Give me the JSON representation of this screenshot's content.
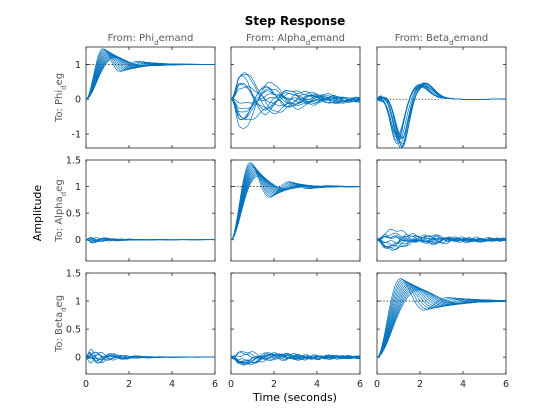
{
  "chart_data": {
    "type": "line",
    "title": "Step Response",
    "xlabel": "Time (seconds)",
    "ylabel": "Amplitude",
    "xlim": [
      0,
      6
    ],
    "xticks": [
      "0",
      "2",
      "4",
      "6"
    ],
    "grid": false,
    "series_color": "#0072BD",
    "reference_color": "#000000",
    "columns": [
      "From: Phi_demand",
      "From: Alpha_demand",
      "From: Beta_demand"
    ],
    "rows": [
      {
        "label": "To: Phi_deg",
        "ylim": [
          -1.4,
          1.5
        ],
        "yticks": [
          "-1",
          "0",
          "1"
        ]
      },
      {
        "label": "To: Alpha_deg",
        "ylim": [
          -0.4,
          1.5
        ],
        "yticks": [
          "0",
          "0.5",
          "1",
          "1.5"
        ]
      },
      {
        "label": "To: Beta_deg",
        "ylim": [
          -0.3,
          1.5
        ],
        "yticks": [
          "0",
          "0.5",
          "1",
          "1.5"
        ]
      }
    ],
    "reference_level": 1,
    "responses": [
      [
        {
          "kind": "step",
          "final": 1,
          "peak_range": [
            1.2,
            1.45
          ],
          "peak_time_range": [
            0.8,
            1.4
          ],
          "n": 12
        },
        {
          "kind": "wave",
          "amp_range": [
            0.15,
            1.2
          ],
          "n": 14
        },
        {
          "kind": "dip",
          "amp_range": [
            1.1,
            1.45
          ],
          "n": 12
        }
      ],
      [
        {
          "kind": "blip",
          "amp_range": [
            0.03,
            0.08
          ],
          "n": 10
        },
        {
          "kind": "step",
          "final": 1,
          "peak_range": [
            1.2,
            1.45
          ],
          "peak_time_range": [
            0.9,
            1.3
          ],
          "n": 12
        },
        {
          "kind": "wave",
          "amp_range": [
            0.05,
            0.3
          ],
          "n": 12
        }
      ],
      [
        {
          "kind": "blip",
          "amp_range": [
            0.04,
            0.2
          ],
          "n": 10
        },
        {
          "kind": "wave",
          "amp_range": [
            0.04,
            0.18
          ],
          "n": 12
        },
        {
          "kind": "step",
          "final": 1,
          "peak_range": [
            1.2,
            1.4
          ],
          "peak_time_range": [
            1.1,
            2.0
          ],
          "n": 12
        }
      ]
    ]
  }
}
